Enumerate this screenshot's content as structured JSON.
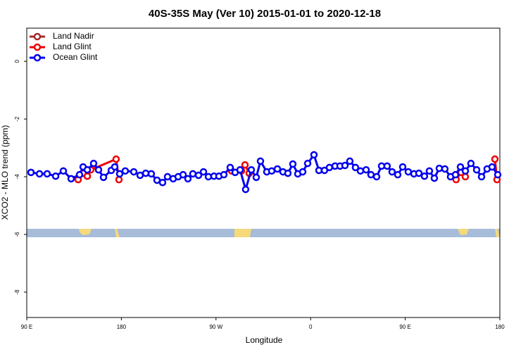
{
  "chart_data": {
    "type": "line",
    "title": "40S-35S May (Ver 10)   2015-01-01 to 2020-12-18",
    "xlabel": "Longitude",
    "ylabel": "XCO2 - MLO trend (ppm)",
    "xlim": [
      90,
      540
    ],
    "ylim": [
      -8.88,
      1.15
    ],
    "xticks": [
      {
        "value": 90,
        "label": "90 E"
      },
      180,
      {
        "value": 270,
        "label": "90 W"
      },
      {
        "value": 360,
        "label": "0"
      },
      {
        "value": 450,
        "label": "90 E"
      },
      {
        "value": 540,
        "label": "180"
      }
    ],
    "yticks": [
      0,
      -2,
      -4,
      -6,
      -8
    ],
    "legend": "top-left",
    "series": [
      {
        "name": "Land Nadir",
        "color": "#a52a2a",
        "x": [
          143.6,
          147.6
        ],
        "values": [
          -3.88,
          -3.98
        ]
      },
      {
        "name": "Land Glint",
        "color": "#ee0000",
        "x": [
          138.9,
          143.6,
          147.6,
          150.9,
          175.0,
          177.7,
          null,
          284.9,
          294.2,
          297.6,
          301.6,
          null,
          498.4,
          503.2,
          507.2,
          null,
          535.3,
          537.3
        ],
        "values": [
          -4.1,
          -3.88,
          -3.98,
          -3.76,
          -3.39,
          -4.1,
          null,
          -3.8,
          -3.8,
          -3.59,
          -3.88,
          null,
          -4.1,
          -3.85,
          -4.0,
          null,
          -3.39,
          -4.1
        ]
      },
      {
        "name": "Ocean Glint",
        "color": "#0000ee",
        "x": [
          94.0,
          102.1,
          109.4,
          117.5,
          124.8,
          132.2,
          140.2,
          143.6,
          147.6,
          153.6,
          158.3,
          163.0,
          170.4,
          173.7,
          178.4,
          183.7,
          191.8,
          197.8,
          203.2,
          208.5,
          213.9,
          219.2,
          223.9,
          229.3,
          234.0,
          238.7,
          243.3,
          248.0,
          253.4,
          258.1,
          262.8,
          268.1,
          272.8,
          277.5,
          283.5,
          288.2,
          292.9,
          298.2,
          303.6,
          308.3,
          312.3,
          318.3,
          323.0,
          328.4,
          333.7,
          338.4,
          343.1,
          347.8,
          352.5,
          357.2,
          363.2,
          367.9,
          373.2,
          377.9,
          383.3,
          388.0,
          392.7,
          397.3,
          402.7,
          407.4,
          412.8,
          417.4,
          422.8,
          427.5,
          432.8,
          437.5,
          442.9,
          447.6,
          452.9,
          458.3,
          463.0,
          468.3,
          473.0,
          477.7,
          482.4,
          487.7,
          493.1,
          497.8,
          502.5,
          507.2,
          512.5,
          517.9,
          522.6,
          527.9,
          532.6,
          538.0
        ],
        "values": [
          -3.85,
          -3.9,
          -3.9,
          -3.98,
          -3.8,
          -4.07,
          -3.93,
          -3.66,
          -3.76,
          -3.54,
          -3.76,
          -4.02,
          -3.78,
          -3.66,
          -3.9,
          -3.8,
          -3.83,
          -3.95,
          -3.88,
          -3.9,
          -4.12,
          -4.2,
          -4.0,
          -4.07,
          -4.0,
          -3.93,
          -4.07,
          -3.9,
          -3.95,
          -3.83,
          -4.0,
          -3.98,
          -3.98,
          -3.93,
          -3.68,
          -3.85,
          -3.76,
          -4.44,
          -3.76,
          -4.02,
          -3.46,
          -3.83,
          -3.8,
          -3.73,
          -3.83,
          -3.88,
          -3.56,
          -3.9,
          -3.83,
          -3.54,
          -3.24,
          -3.78,
          -3.78,
          -3.68,
          -3.63,
          -3.63,
          -3.61,
          -3.46,
          -3.68,
          -3.8,
          -3.76,
          -3.93,
          -4.0,
          -3.63,
          -3.63,
          -3.83,
          -3.93,
          -3.66,
          -3.83,
          -3.9,
          -3.88,
          -3.98,
          -3.8,
          -4.05,
          -3.71,
          -3.73,
          -4.0,
          -3.93,
          -3.66,
          -3.8,
          -3.54,
          -3.76,
          -4.0,
          -3.73,
          -3.66,
          -3.93
        ]
      }
    ]
  }
}
